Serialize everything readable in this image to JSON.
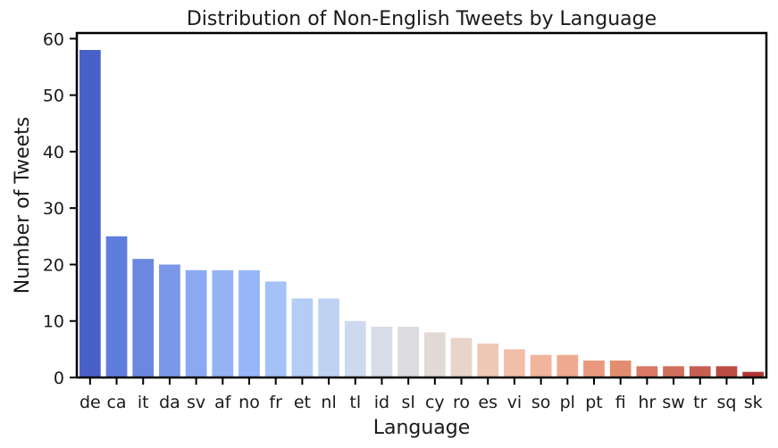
{
  "chart_data": {
    "type": "bar",
    "title": "Distribution of Non-English Tweets by Language",
    "xlabel": "Language",
    "ylabel": "Number of Tweets",
    "ylim": [
      0,
      61
    ],
    "yticks": [
      0,
      10,
      20,
      30,
      40,
      50,
      60
    ],
    "grid": false,
    "legend": "none",
    "categories": [
      "de",
      "ca",
      "it",
      "da",
      "sv",
      "af",
      "no",
      "fr",
      "et",
      "nl",
      "tl",
      "id",
      "sl",
      "cy",
      "ro",
      "es",
      "vi",
      "so",
      "pl",
      "pt",
      "fi",
      "hr",
      "sw",
      "tr",
      "sq",
      "sk"
    ],
    "values": [
      58,
      25,
      21,
      20,
      19,
      19,
      19,
      17,
      14,
      14,
      10,
      9,
      9,
      8,
      7,
      6,
      5,
      4,
      4,
      3,
      3,
      2,
      2,
      2,
      2,
      1
    ],
    "colors": [
      "#4960c9",
      "#5f7ddc",
      "#6b88e0",
      "#7b97e8",
      "#8aa9f2",
      "#95b2f4",
      "#97b6f8",
      "#a4c1f8",
      "#b5ccf4",
      "#bed3f2",
      "#cdd9ee",
      "#d6dde9",
      "#dcdcdf",
      "#e2d9d5",
      "#e8d4c9",
      "#eec8b4",
      "#f1bea8",
      "#f2b49a",
      "#eeaa8e",
      "#e99a7e",
      "#e18e70",
      "#d97965",
      "#d16e5c",
      "#c65f52",
      "#bb4c45",
      "#b23636"
    ]
  }
}
